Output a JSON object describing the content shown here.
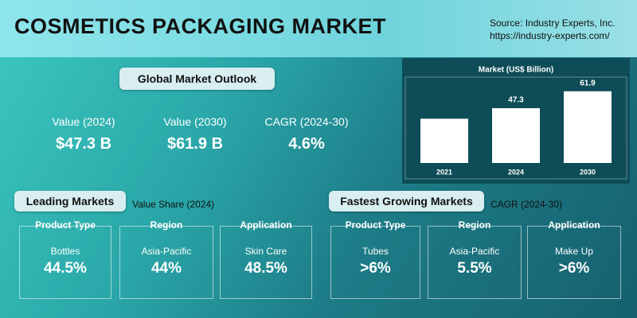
{
  "header": {
    "title": "COSMETICS PACKAGING MARKET",
    "source": "Source: Industry Experts, Inc.",
    "url": "https://industry-experts.com/"
  },
  "outlook": {
    "title": "Global Market Outlook",
    "stats": [
      {
        "label": "Value (2024)",
        "value": "$47.3 B"
      },
      {
        "label": "Value (2030)",
        "value": "$61.9 B"
      },
      {
        "label": "CAGR (2024-30)",
        "value": "4.6%"
      }
    ]
  },
  "chart_data": {
    "type": "bar",
    "title": "Market (US$ Billion)",
    "categories": [
      "2021",
      "2024",
      "2030"
    ],
    "values": [
      38.2,
      47.3,
      61.9
    ],
    "value_labels": [
      null,
      "47.3",
      "61.9"
    ],
    "color": "#ffffff",
    "ylim": [
      0,
      70
    ]
  },
  "leading": {
    "title": "Leading Markets",
    "subtitle": "Value Share (2024)",
    "cells": [
      {
        "heading": "Product Type",
        "item": "Bottles",
        "value": "44.5%"
      },
      {
        "heading": "Region",
        "item": "Asia-Pacific",
        "value": "44%"
      },
      {
        "heading": "Application",
        "item": "Skin Care",
        "value": "48.5%"
      }
    ]
  },
  "fastest": {
    "title": "Fastest Growing Markets",
    "subtitle": "CAGR (2024-30)",
    "cells": [
      {
        "heading": "Product Type",
        "item": "Tubes",
        "value": ">6%"
      },
      {
        "heading": "Region",
        "item": "Asia-Pacific",
        "value": "5.5%"
      },
      {
        "heading": "Application",
        "item": "Make Up",
        "value": ">6%"
      }
    ]
  }
}
